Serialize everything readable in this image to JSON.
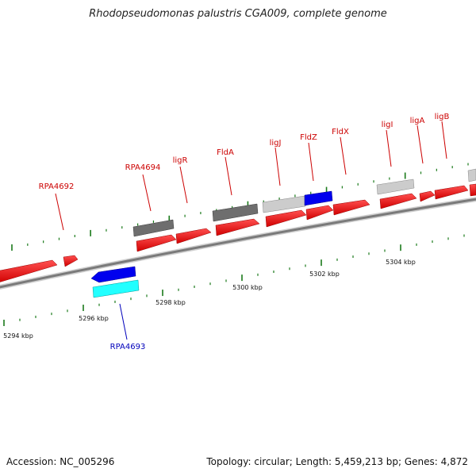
{
  "title": "Rhodopseudomonas palustris CGA009, complete genome",
  "footer": {
    "accession": "Accession: NC_005296",
    "summary": "Topology: circular; Length: 5,459,213 bp; Genes: 4,872"
  },
  "colors": {
    "forward_gene": "#ff0000",
    "reverse_gene": "#0000ff",
    "rna_feature": "#00ffff",
    "dark_feature": "#707070",
    "light_feature": "#c8c8c8",
    "backbone": "#8a8a8a",
    "ticks": "#1a7a1a",
    "forward_label": "#cc0000",
    "reverse_label": "#0000bb"
  },
  "ruler": {
    "scale_labels": [
      "5294 kbp",
      "5296 kbp",
      "5298 kbp",
      "5300 kbp",
      "5302 kbp",
      "5304 kbp"
    ]
  },
  "gene_labels": {
    "rpa4692": "RPA4692",
    "rpa4693": "RPA4693",
    "rpa4694": "RPA4694",
    "ligr": "ligR",
    "flda": "FldA",
    "ligj": "ligJ",
    "fldz": "FldZ",
    "fldx": "FldX",
    "ligi": "ligI",
    "liga": "ligA",
    "ligb": "ligB"
  }
}
